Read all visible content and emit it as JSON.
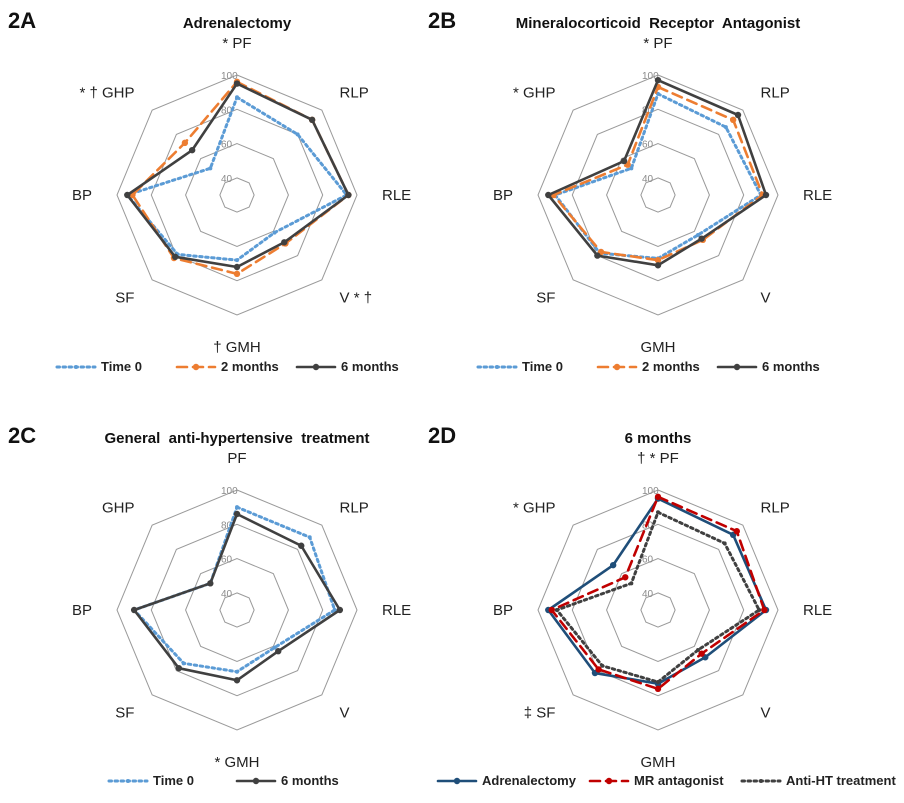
{
  "chart_data": [
    {
      "id": "2A",
      "type": "radar",
      "panel_label": "2A",
      "title": "Adrenalectomy",
      "axes": [
        "PF",
        "RLP",
        "RLE",
        "V",
        "GMH",
        "SF",
        "BP",
        "GHP"
      ],
      "axis_labels": [
        "* PF",
        "RLP",
        "RLE",
        "V * †",
        "† GMH",
        "SF",
        "BP",
        "* † GHP"
      ],
      "rmin": 30,
      "rmax": 100,
      "gridlines": [
        40,
        60,
        80,
        100
      ],
      "tick_labels": [
        "40",
        "60",
        "80",
        "100"
      ],
      "series": [
        {
          "name": "Time 0",
          "color": "#5b9bd5",
          "style": "dotted",
          "values": [
            87,
            80,
            94,
            61,
            68,
            79,
            94,
            52
          ]
        },
        {
          "name": "2 months",
          "color": "#ed7d31",
          "style": "dashed",
          "values": [
            96,
            92,
            95,
            70,
            76,
            82,
            91,
            73
          ]
        },
        {
          "name": "6 months",
          "color": "#404040",
          "style": "solid",
          "values": [
            95,
            92,
            95,
            69,
            72,
            81,
            94,
            67
          ]
        }
      ]
    },
    {
      "id": "2B",
      "type": "radar",
      "panel_label": "2B",
      "title": "Mineralocorticoid  Receptor  Antagonist",
      "axes": [
        "PF",
        "RLP",
        "RLE",
        "V",
        "GMH",
        "SF",
        "BP",
        "GHP"
      ],
      "axis_labels": [
        "* PF",
        "RLP",
        "RLE",
        "V",
        "GMH",
        "SF",
        "BP",
        "* GHP"
      ],
      "rmin": 30,
      "rmax": 100,
      "gridlines": [
        40,
        60,
        80,
        100
      ],
      "tick_labels": [
        "40",
        "60",
        "80",
        "100"
      ],
      "series": [
        {
          "name": "Time 0",
          "color": "#5b9bd5",
          "style": "dotted",
          "values": [
            89,
            86,
            90,
            63,
            67,
            78,
            90,
            52
          ]
        },
        {
          "name": "2 months",
          "color": "#ed7d31",
          "style": "dashed",
          "values": [
            93,
            92,
            91,
            67,
            68,
            77,
            91,
            55
          ]
        },
        {
          "name": "6 months",
          "color": "#404040",
          "style": "solid",
          "values": [
            97,
            96,
            93,
            66,
            71,
            80,
            94,
            58
          ]
        }
      ]
    },
    {
      "id": "2C",
      "type": "radar",
      "panel_label": "2C",
      "title": "General  anti-hypertensive  treatment",
      "axes": [
        "PF",
        "RLP",
        "RLE",
        "V",
        "GMH",
        "SF",
        "BP",
        "GHP"
      ],
      "axis_labels": [
        "PF",
        "RLP",
        "RLE",
        "V",
        "* GMH",
        "SF",
        "BP",
        "GHP"
      ],
      "rmin": 30,
      "rmax": 100,
      "gridlines": [
        40,
        60,
        80,
        100
      ],
      "tick_labels": [
        "40",
        "60",
        "80",
        "100"
      ],
      "series": [
        {
          "name": "Time 0",
          "color": "#5b9bd5",
          "style": "dotted",
          "values": [
            90,
            90,
            87,
            61,
            66,
            74,
            90,
            52
          ]
        },
        {
          "name": "6 months",
          "color": "#404040",
          "style": "solid",
          "values": [
            86,
            83,
            90,
            64,
            71,
            78,
            90,
            52
          ]
        }
      ]
    },
    {
      "id": "2D",
      "type": "radar",
      "panel_label": "2D",
      "title": "6 months",
      "axes": [
        "PF",
        "RLP",
        "RLE",
        "V",
        "GMH",
        "SF",
        "BP",
        "GHP"
      ],
      "axis_labels": [
        "† * PF",
        "RLP",
        "RLE",
        "V",
        "GMH",
        "‡ SF",
        "BP",
        "* GHP"
      ],
      "rmin": 30,
      "rmax": 100,
      "gridlines": [
        40,
        60,
        80,
        100
      ],
      "tick_labels": [
        "40",
        "60",
        "80",
        "100"
      ],
      "series": [
        {
          "name": "Adrenalectomy",
          "color": "#1f4e79",
          "style": "solid",
          "values": [
            95,
            92,
            93,
            69,
            73,
            82,
            94,
            67
          ]
        },
        {
          "name": "MR antagonist",
          "color": "#c00000",
          "style": "dashed",
          "values": [
            96,
            95,
            92,
            66,
            76,
            79,
            92,
            57
          ]
        },
        {
          "name": "Anti-HT treatment",
          "color": "#404040",
          "style": "dotted",
          "values": [
            87,
            85,
            89,
            63,
            72,
            76,
            89,
            52
          ]
        }
      ]
    }
  ]
}
